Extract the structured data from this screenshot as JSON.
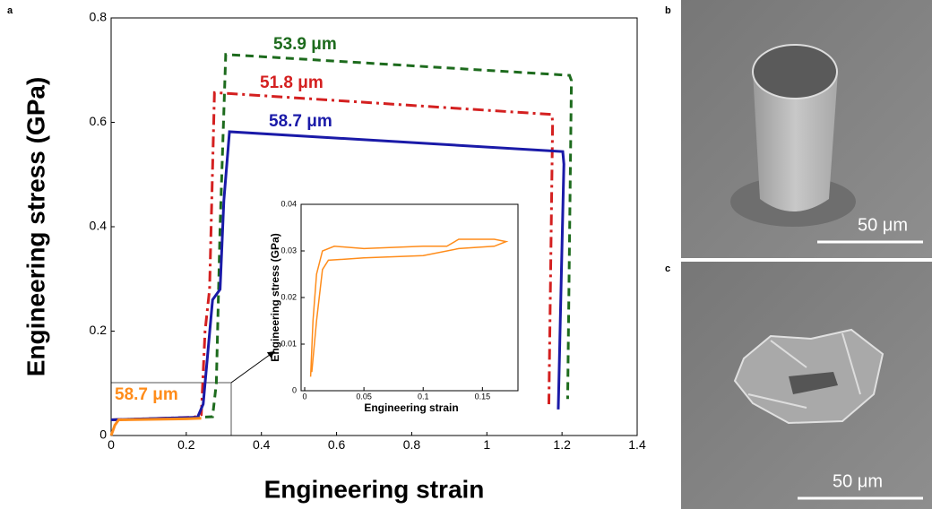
{
  "chart_data": [
    {
      "type": "line",
      "panel_label": "a",
      "x_label": "Engineering strain",
      "y_label": "Engineering stress (GPa)",
      "xlim": [
        0,
        1.4
      ],
      "xticks": [
        0,
        0.2,
        0.4,
        0.6,
        0.8,
        1,
        1.2,
        1.4
      ],
      "ylim": [
        0,
        0.8
      ],
      "yticks": [
        0,
        0.2,
        0.4,
        0.6,
        0.8
      ],
      "grid": false,
      "series": [
        {
          "name": "53.9 μm",
          "color": "#1d6b1d",
          "dash": "dashed",
          "x": [
            0,
            0.2,
            0.27,
            0.28,
            0.29,
            0.305,
            1.22,
            1.225,
            1.215
          ],
          "values": [
            0.03,
            0.034,
            0.036,
            0.1,
            0.4,
            0.73,
            0.69,
            0.68,
            0.07
          ]
        },
        {
          "name": "51.8 μm",
          "color": "#d42020",
          "dash": "dashdot",
          "x": [
            0,
            0.22,
            0.24,
            0.25,
            0.262,
            0.275,
            1.173,
            1.175,
            1.165
          ],
          "values": [
            0.03,
            0.035,
            0.04,
            0.2,
            0.28,
            0.657,
            0.615,
            0.6,
            0.06
          ]
        },
        {
          "name": "58.7 μm",
          "color": "#1a1aa8",
          "dash": "solid",
          "x": [
            0,
            0.23,
            0.245,
            0.27,
            0.29,
            0.3,
            0.315,
            1.202,
            1.205,
            1.19
          ],
          "values": [
            0.03,
            0.035,
            0.06,
            0.26,
            0.28,
            0.45,
            0.582,
            0.544,
            0.52,
            0.05
          ]
        },
        {
          "name": "58.7 μm",
          "color": "#ff8c1a",
          "dash": "solid",
          "x": [
            0,
            0.01,
            0.02,
            0.1,
            0.2,
            0.24
          ],
          "values": [
            0,
            0.02,
            0.03,
            0.031,
            0.032,
            0.033
          ]
        }
      ]
    },
    {
      "type": "line",
      "x_label": "Engineering strain",
      "y_label": "Engineering stress (GPa)",
      "xlim": [
        0,
        0.18
      ],
      "xticks": [
        0,
        0.05,
        0.1,
        0.15
      ],
      "ylim": [
        0,
        0.04
      ],
      "yticks": [
        0,
        0.01,
        0.02,
        0.03,
        0.04
      ],
      "grid": false,
      "series": [
        {
          "color": "#ff8c1a",
          "dash": "solid",
          "x": [
            0.005,
            0.007,
            0.01,
            0.015,
            0.025,
            0.05,
            0.1,
            0.12,
            0.13,
            0.16,
            0.17,
            0.16,
            0.13,
            0.1,
            0.05,
            0.02,
            0.015,
            0.01,
            0.006
          ],
          "values": [
            0.003,
            0.015,
            0.025,
            0.03,
            0.031,
            0.0305,
            0.031,
            0.031,
            0.0325,
            0.0325,
            0.032,
            0.031,
            0.0305,
            0.029,
            0.0285,
            0.028,
            0.026,
            0.015,
            0.004
          ]
        }
      ]
    }
  ],
  "images": [
    {
      "panel_label": "b",
      "scale_bar": "50 μm"
    },
    {
      "panel_label": "c",
      "scale_bar": "50 μm"
    }
  ]
}
